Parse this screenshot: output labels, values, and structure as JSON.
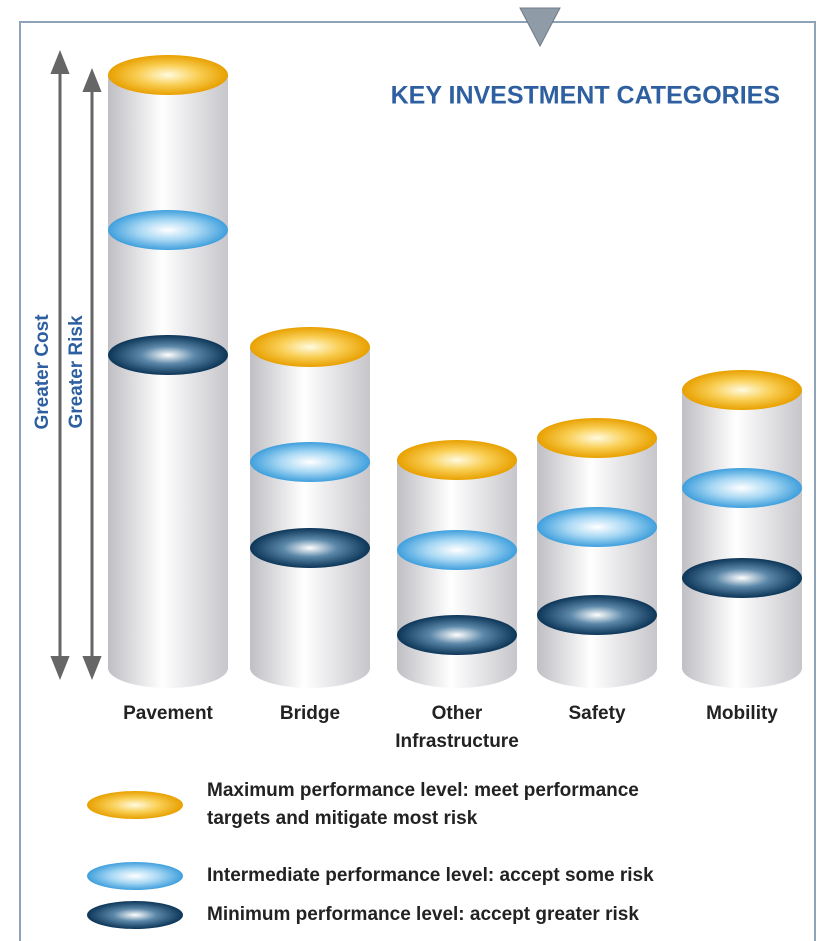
{
  "title": "KEY INVESTMENT CATEGORIES",
  "axis_labels": [
    "Greater Cost",
    "Greater Risk"
  ],
  "categories": [
    {
      "label_lines": [
        "Pavement"
      ]
    },
    {
      "label_lines": [
        "Bridge"
      ]
    },
    {
      "label_lines": [
        "Other",
        "Infrastructure"
      ]
    },
    {
      "label_lines": [
        "Safety"
      ]
    },
    {
      "label_lines": [
        "Mobility"
      ]
    }
  ],
  "legend": [
    {
      "label_lines": [
        "Maximum performance level: meet performance",
        "targets and mitigate most risk"
      ]
    },
    {
      "label_lines": [
        "Intermediate performance level: accept some risk"
      ]
    },
    {
      "label_lines": [
        "Minimum  performance level: accept greater risk"
      ]
    }
  ]
}
